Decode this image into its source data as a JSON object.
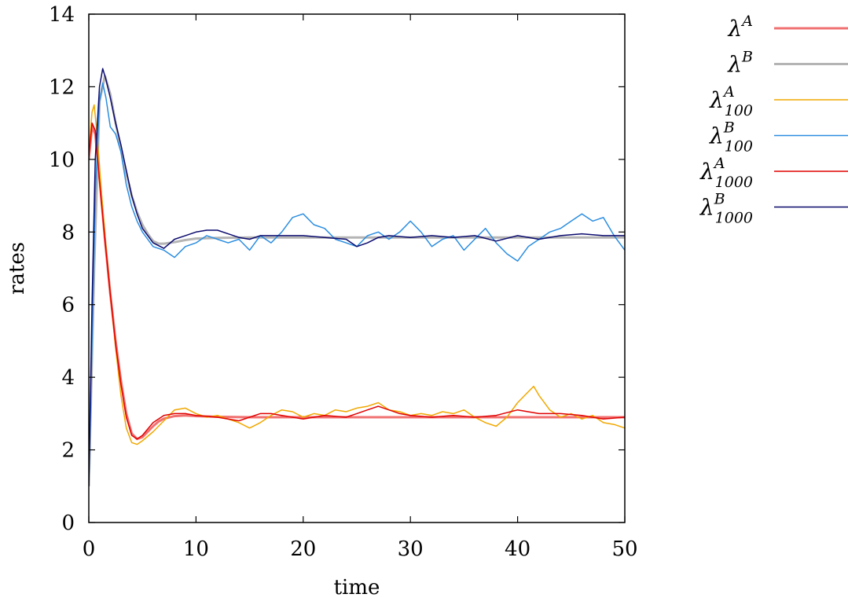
{
  "chart_data": {
    "type": "line",
    "xlabel": "time",
    "ylabel": "rates",
    "xlim": [
      0,
      50
    ],
    "ylim": [
      0,
      14
    ],
    "xticks": [
      0,
      10,
      20,
      30,
      40,
      50
    ],
    "yticks": [
      0,
      2,
      4,
      6,
      8,
      10,
      12,
      14
    ],
    "grid": false,
    "legend_position": "outside-right-top",
    "series": [
      {
        "name": "λ^A",
        "base": "λ",
        "sup": "A",
        "sub": "",
        "color": "#f07070",
        "width": 3,
        "x": [
          0,
          0.3,
          0.6,
          1,
          1.5,
          2,
          2.5,
          3,
          3.5,
          4,
          4.5,
          5,
          5.5,
          6,
          6.5,
          7,
          8,
          9,
          10,
          12,
          15,
          20,
          30,
          40,
          50
        ],
        "y": [
          10.0,
          10.9,
          10.7,
          9.5,
          7.8,
          6.3,
          5.0,
          3.9,
          3.0,
          2.45,
          2.3,
          2.35,
          2.5,
          2.65,
          2.78,
          2.86,
          2.93,
          2.95,
          2.93,
          2.91,
          2.9,
          2.9,
          2.9,
          2.9,
          2.9
        ]
      },
      {
        "name": "λ^B",
        "base": "λ",
        "sup": "B",
        "sub": "",
        "color": "#b4b4b4",
        "width": 3,
        "x": [
          0,
          0.5,
          1,
          1.5,
          2,
          2.5,
          3,
          3.5,
          4,
          4.5,
          5,
          5.5,
          6,
          6.5,
          7,
          8,
          9,
          10,
          12,
          15,
          20,
          30,
          40,
          50
        ],
        "y": [
          1.0,
          7.0,
          11.6,
          12.3,
          11.8,
          11.0,
          10.3,
          9.6,
          9.0,
          8.55,
          8.2,
          7.95,
          7.75,
          7.68,
          7.68,
          7.72,
          7.78,
          7.82,
          7.84,
          7.85,
          7.85,
          7.85,
          7.85,
          7.85
        ]
      },
      {
        "name": "λ^A_100",
        "base": "λ",
        "sup": "A",
        "sub": "100",
        "color": "#f0a800",
        "width": 1.5,
        "x": [
          0,
          0.3,
          0.5,
          0.8,
          1.2,
          1.6,
          2,
          2.5,
          3,
          3.5,
          4,
          4.5,
          5,
          6,
          7,
          8,
          9,
          10,
          11,
          12,
          13,
          14,
          15,
          16,
          17,
          18,
          19,
          20,
          21,
          22,
          23,
          24,
          25,
          26,
          27,
          28,
          29,
          30,
          31,
          32,
          33,
          34,
          35,
          36,
          37,
          38,
          39,
          40,
          41,
          41.5,
          42,
          43,
          44,
          45,
          46,
          47,
          48,
          49,
          50
        ],
        "y": [
          10.2,
          11.3,
          11.5,
          10.6,
          9.0,
          7.6,
          6.3,
          4.8,
          3.5,
          2.6,
          2.2,
          2.15,
          2.25,
          2.5,
          2.8,
          3.1,
          3.15,
          3.0,
          2.9,
          2.95,
          2.85,
          2.75,
          2.6,
          2.75,
          2.95,
          3.1,
          3.05,
          2.9,
          3.0,
          2.95,
          3.1,
          3.05,
          3.15,
          3.2,
          3.3,
          3.1,
          3.05,
          2.95,
          3.0,
          2.95,
          3.05,
          3.0,
          3.1,
          2.9,
          2.75,
          2.65,
          2.9,
          3.3,
          3.6,
          3.75,
          3.5,
          3.1,
          2.9,
          3.0,
          2.85,
          2.95,
          2.75,
          2.7,
          2.6
        ]
      },
      {
        "name": "λ^B_100",
        "base": "λ",
        "sup": "B",
        "sub": "100",
        "color": "#2a8de0",
        "width": 1.5,
        "x": [
          0,
          0.3,
          0.6,
          1,
          1.3,
          1.6,
          2,
          2.5,
          3,
          3.5,
          4,
          4.5,
          5,
          6,
          7,
          8,
          9,
          10,
          11,
          12,
          13,
          14,
          15,
          16,
          17,
          18,
          19,
          20,
          21,
          22,
          23,
          24,
          25,
          26,
          27,
          28,
          29,
          30,
          31,
          32,
          33,
          34,
          35,
          36,
          37,
          38,
          39,
          40,
          41,
          42,
          43,
          44,
          45,
          46,
          47,
          48,
          49,
          50
        ],
        "y": [
          1.0,
          5.0,
          9.0,
          11.6,
          12.1,
          11.7,
          10.9,
          10.7,
          10.2,
          9.3,
          8.7,
          8.3,
          8.0,
          7.6,
          7.5,
          7.3,
          7.6,
          7.7,
          7.9,
          7.8,
          7.7,
          7.8,
          7.5,
          7.9,
          7.7,
          8.0,
          8.4,
          8.5,
          8.2,
          8.1,
          7.8,
          7.7,
          7.6,
          7.9,
          8.0,
          7.8,
          8.0,
          8.3,
          8.0,
          7.6,
          7.8,
          7.9,
          7.5,
          7.8,
          8.1,
          7.7,
          7.4,
          7.2,
          7.6,
          7.8,
          8.0,
          8.1,
          8.3,
          8.5,
          8.3,
          8.4,
          7.9,
          7.5
        ]
      },
      {
        "name": "λ^A_1000",
        "base": "λ",
        "sup": "A",
        "sub": "1000",
        "color": "#e00000",
        "width": 1.5,
        "x": [
          0,
          0.3,
          0.6,
          1,
          1.5,
          2,
          2.5,
          3,
          3.5,
          4,
          4.5,
          5,
          6,
          7,
          8,
          9,
          10,
          12,
          14,
          15,
          16,
          17,
          18,
          19,
          20,
          22,
          24,
          25,
          26,
          27,
          28,
          29,
          30,
          32,
          34,
          36,
          38,
          40,
          42,
          44,
          46,
          48,
          50
        ],
        "y": [
          10.1,
          11.0,
          10.8,
          9.4,
          7.8,
          6.3,
          4.9,
          3.8,
          2.9,
          2.4,
          2.3,
          2.4,
          2.75,
          2.95,
          3.0,
          3.0,
          2.95,
          2.9,
          2.8,
          2.9,
          3.0,
          3.0,
          2.95,
          2.9,
          2.85,
          2.95,
          2.9,
          3.0,
          3.1,
          3.2,
          3.1,
          3.0,
          2.95,
          2.9,
          2.95,
          2.9,
          2.95,
          3.1,
          3.0,
          3.0,
          2.95,
          2.85,
          2.9
        ]
      },
      {
        "name": "λ^B_1000",
        "base": "λ",
        "sup": "B",
        "sub": "1000",
        "color": "#0a0a6e",
        "width": 1.5,
        "x": [
          0,
          0.3,
          0.6,
          1,
          1.3,
          1.6,
          2,
          2.5,
          3,
          3.5,
          4,
          4.5,
          5,
          6,
          7,
          8,
          9,
          10,
          11,
          12,
          13,
          14,
          15,
          16,
          18,
          20,
          22,
          24,
          25,
          26,
          27,
          28,
          30,
          32,
          34,
          36,
          38,
          40,
          42,
          44,
          46,
          48,
          50
        ],
        "y": [
          1.0,
          6.0,
          10.0,
          12.0,
          12.5,
          12.2,
          11.7,
          11.0,
          10.4,
          9.7,
          9.0,
          8.5,
          8.1,
          7.7,
          7.55,
          7.8,
          7.9,
          8.0,
          8.05,
          8.05,
          7.95,
          7.85,
          7.8,
          7.9,
          7.9,
          7.9,
          7.85,
          7.8,
          7.6,
          7.7,
          7.85,
          7.9,
          7.85,
          7.9,
          7.85,
          7.9,
          7.75,
          7.9,
          7.8,
          7.9,
          7.95,
          7.9,
          7.9
        ]
      }
    ]
  }
}
